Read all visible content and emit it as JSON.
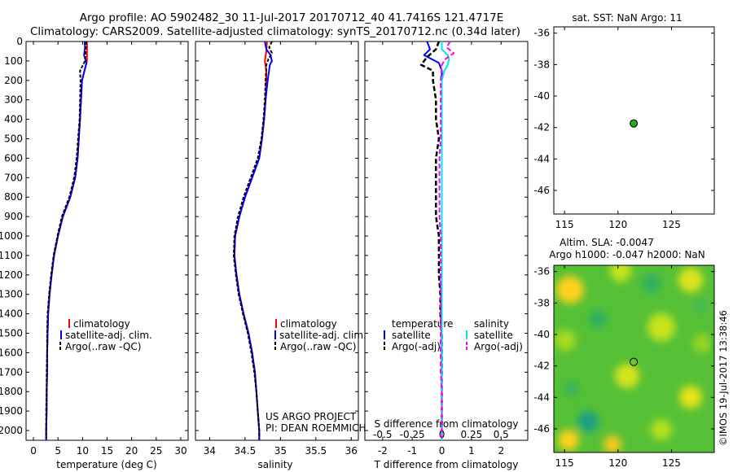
{
  "header": {
    "line1": "Argo profile: AO 5902482_30 11-Jul-2017 20170712_40 41.7416S 121.4717E",
    "line2": "Climatology: CARS2009. Satellite-adjusted climatology: synTS_20170712.nc (0.34d later)"
  },
  "colors": {
    "climatology": "#ff0000",
    "satellite": "#0000ff",
    "argo": "#000000",
    "salinity_satellite": "#00e5ee",
    "salinity_argo": "#ff00ff",
    "float_marker": "#22aa22"
  },
  "depth_axis": {
    "range": [
      0,
      2050
    ],
    "ticks": [
      "0",
      "100",
      "200",
      "300",
      "400",
      "500",
      "600",
      "700",
      "800",
      "900",
      "1000",
      "1100",
      "1200",
      "1300",
      "1400",
      "1500",
      "1600",
      "1700",
      "1800",
      "1900",
      "2000"
    ]
  },
  "chart_data": [
    {
      "id": "temperature",
      "type": "line",
      "xlabel": "temperature (deg C)",
      "xlim": [
        -1.5,
        31.5
      ],
      "x_ticks": [
        "0",
        "5",
        "10",
        "15",
        "20",
        "25",
        "30"
      ],
      "ylim": [
        0,
        2050
      ],
      "legend": [
        "climatology",
        "satellite-adj. clim.",
        "Argo(..raw -QC)"
      ],
      "series": [
        {
          "name": "climatology",
          "depth": [
            0,
            100,
            200,
            400,
            600,
            700,
            800,
            900,
            1000,
            1100,
            1200,
            1300,
            1400,
            1500,
            1600,
            1700,
            1800,
            1900,
            2000,
            2050
          ],
          "values": [
            10.9,
            10.9,
            9.9,
            9.5,
            9.0,
            8.5,
            7.5,
            6.0,
            5.0,
            4.2,
            3.7,
            3.3,
            3.0,
            2.9,
            2.8,
            2.8,
            2.7,
            2.7,
            2.6,
            2.6
          ]
        },
        {
          "name": "satellite-adj. clim.",
          "depth": [
            0,
            30,
            70,
            110,
            200,
            400,
            600,
            700,
            800,
            900,
            1000,
            1100,
            1200,
            1300,
            1400,
            1500,
            1600,
            1700,
            1800,
            1900,
            2000,
            2050
          ],
          "values": [
            10.4,
            10.5,
            10.3,
            10.8,
            9.9,
            9.5,
            9.0,
            8.5,
            7.5,
            6.0,
            5.0,
            4.2,
            3.7,
            3.3,
            3.0,
            2.9,
            2.8,
            2.8,
            2.7,
            2.7,
            2.6,
            2.6
          ]
        },
        {
          "name": "Argo(..raw -QC)",
          "depth": [
            0,
            50,
            100,
            150,
            200,
            300,
            400,
            500,
            600,
            700,
            800,
            900,
            1000,
            1100,
            1200,
            1300,
            1400,
            1500,
            1600,
            1700,
            1800,
            1900,
            2000,
            2040
          ],
          "values": [
            10.8,
            10.6,
            10.5,
            9.5,
            9.6,
            9.5,
            9.4,
            9.1,
            8.8,
            8.3,
            7.3,
            5.8,
            4.9,
            4.1,
            3.6,
            3.2,
            2.9,
            2.8,
            2.8,
            2.7,
            2.7,
            2.6,
            2.6,
            2.6
          ]
        }
      ]
    },
    {
      "id": "salinity",
      "type": "line",
      "xlabel": "salinity",
      "xlim": [
        33.8,
        36.1
      ],
      "x_ticks": [
        "34",
        "34.5",
        "35",
        "35.5",
        "36"
      ],
      "ylim": [
        0,
        2050
      ],
      "legend": [
        "climatology",
        "satellite-adj. clim.",
        "Argo(..raw -QC)"
      ],
      "annotation": [
        "US ARGO PROJECT",
        "PI: DEAN ROEMMICH"
      ],
      "series": [
        {
          "name": "climatology",
          "depth": [
            0,
            50,
            100,
            150,
            200,
            300,
            400,
            500,
            600,
            700,
            800,
            900,
            1000,
            1100,
            1200,
            1300,
            1400,
            1500,
            1600,
            1700,
            1800,
            1900,
            2000,
            2050
          ],
          "values": [
            34.81,
            34.8,
            34.78,
            34.8,
            34.8,
            34.79,
            34.77,
            34.74,
            34.7,
            34.6,
            34.5,
            34.42,
            34.36,
            34.35,
            34.38,
            34.42,
            34.48,
            34.55,
            34.6,
            34.64,
            34.66,
            34.68,
            34.7,
            34.7
          ]
        },
        {
          "name": "satellite-adj. clim.",
          "depth": [
            0,
            40,
            70,
            100,
            120,
            200,
            300,
            400,
            500,
            600,
            700,
            800,
            900,
            1000,
            1100,
            1200,
            1300,
            1400,
            1500,
            1600,
            1700,
            1800,
            1900,
            2000,
            2050
          ],
          "values": [
            34.78,
            34.8,
            34.86,
            34.88,
            34.85,
            34.82,
            34.79,
            34.77,
            34.74,
            34.7,
            34.6,
            34.5,
            34.42,
            34.36,
            34.35,
            34.38,
            34.42,
            34.48,
            34.55,
            34.6,
            34.64,
            34.66,
            34.68,
            34.7,
            34.7
          ]
        },
        {
          "name": "Argo(..raw -QC)",
          "depth": [
            0,
            30,
            60,
            90,
            120,
            200,
            300,
            400,
            500,
            600,
            700,
            800,
            900,
            1000,
            1100,
            1200,
            1300,
            1400,
            1500,
            1600,
            1700,
            1800,
            1900,
            2000,
            2040
          ],
          "values": [
            34.88,
            34.84,
            34.88,
            34.83,
            34.8,
            34.79,
            34.78,
            34.76,
            34.73,
            34.68,
            34.58,
            34.48,
            34.4,
            34.35,
            34.34,
            34.37,
            34.41,
            34.47,
            34.54,
            34.59,
            34.63,
            34.66,
            34.68,
            34.7,
            34.7
          ]
        }
      ]
    },
    {
      "id": "difference",
      "type": "line",
      "xlabel": "T difference from climatology",
      "xlabel_top": "S difference from climatology",
      "xlim": [
        -2.6,
        2.9
      ],
      "x_ticks": [
        "-2",
        "-1",
        "0",
        "1",
        "2"
      ],
      "x_ticks_top": [
        "-0.5",
        "-0.25",
        "0",
        "0.25",
        "0.5"
      ],
      "ylim": [
        0,
        2050
      ],
      "legend_temperature": {
        "title": "temperature",
        "items": [
          "satellite",
          "Argo(-adj)"
        ]
      },
      "legend_salinity": {
        "title": "salinity",
        "items": [
          "satellite",
          "Argo(-adj)"
        ]
      },
      "series": [
        {
          "name": "temperature satellite",
          "depth": [
            0,
            40,
            70,
            110,
            150,
            200,
            300,
            400,
            600,
            800,
            1000,
            1200,
            1400,
            1600,
            1800,
            2000,
            2050
          ],
          "values": [
            -0.5,
            -0.4,
            -0.6,
            -0.1,
            0.0,
            0.0,
            0.0,
            0.0,
            0.0,
            0.0,
            0.0,
            0.0,
            0.0,
            0.0,
            0.0,
            0.0,
            0.0
          ]
        },
        {
          "name": "temperature Argo(-adj)",
          "depth": [
            0,
            40,
            80,
            120,
            150,
            200,
            300,
            400,
            500,
            600,
            700,
            800,
            900,
            1000,
            1100,
            1200,
            1300,
            1400,
            1500,
            1600,
            1700,
            1800,
            1900,
            2000,
            2040
          ],
          "values": [
            -0.1,
            -0.2,
            -0.5,
            -0.7,
            -0.3,
            -0.3,
            -0.2,
            -0.2,
            -0.1,
            -0.2,
            -0.2,
            -0.2,
            -0.2,
            -0.1,
            -0.1,
            -0.1,
            -0.05,
            -0.05,
            0.0,
            0.0,
            0.0,
            0.0,
            0.0,
            0.0,
            0.0
          ]
        },
        {
          "name": "salinity satellite",
          "depth": [
            0,
            40,
            70,
            90,
            120,
            150,
            200,
            300,
            500,
            700,
            900,
            1100,
            1300,
            1500,
            1700,
            1900,
            2050
          ],
          "values": [
            0.0,
            0.0,
            0.05,
            0.06,
            0.05,
            0.02,
            0.0,
            0.0,
            0.0,
            0.0,
            0.0,
            0.0,
            0.0,
            0.0,
            0.0,
            0.0,
            0.0
          ]
        },
        {
          "name": "salinity Argo(-adj)",
          "depth": [
            0,
            30,
            60,
            90,
            120,
            200,
            300,
            400,
            500,
            600,
            700,
            800,
            900,
            1000,
            1100,
            1200,
            1300,
            1400,
            1500,
            1600,
            1700,
            1800,
            1900,
            2000,
            2040
          ],
          "values": [
            0.07,
            0.04,
            0.1,
            0.03,
            0.0,
            -0.01,
            -0.01,
            -0.01,
            -0.01,
            -0.02,
            -0.02,
            -0.02,
            -0.02,
            -0.01,
            -0.01,
            -0.01,
            -0.01,
            -0.01,
            -0.01,
            -0.01,
            -0.01,
            0.0,
            0.0,
            0.0,
            0.0
          ]
        }
      ]
    },
    {
      "id": "sst_map",
      "type": "scatter",
      "title": "sat. SST: NaN Argo: 11",
      "xlim": [
        114,
        129
      ],
      "ylim": [
        -47.5,
        -35.6
      ],
      "x_ticks": [
        "115",
        "120",
        "125"
      ],
      "y_ticks": [
        "-36",
        "-38",
        "-40",
        "-42",
        "-44",
        "-46"
      ],
      "points": [
        {
          "lon": 121.47,
          "lat": -41.74
        }
      ]
    },
    {
      "id": "sla_map",
      "type": "heatmap",
      "title": "Altim. SLA: -0.0047",
      "subtitle": "Argo h1000: -0.047 h2000: NaN",
      "xlim": [
        114,
        129
      ],
      "ylim": [
        -47.5,
        -35.6
      ],
      "x_ticks": [
        "115",
        "120",
        "125"
      ],
      "y_ticks": [
        "-36",
        "-38",
        "-40",
        "-42",
        "-44",
        "-46"
      ],
      "points": [
        {
          "lon": 121.47,
          "lat": -41.74
        }
      ]
    }
  ],
  "footer": {
    "stamp": "©IMOS 19-Jul-2017 13:38:46"
  }
}
